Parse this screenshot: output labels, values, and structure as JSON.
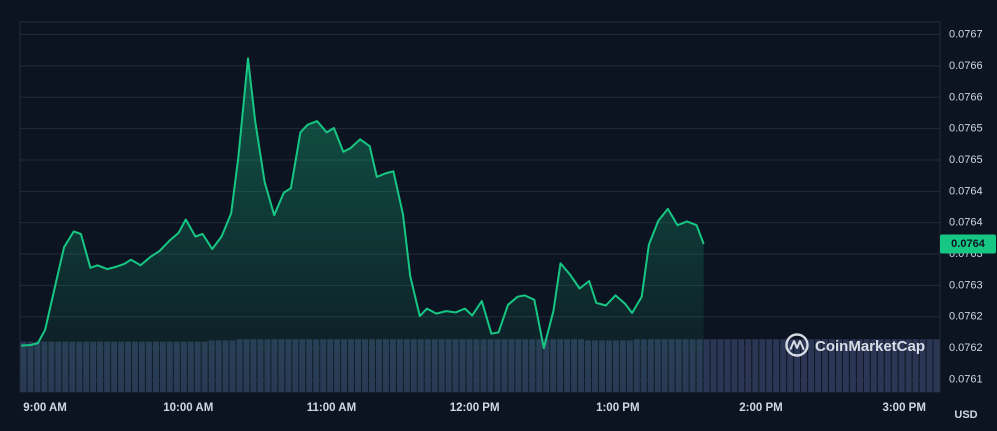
{
  "chart_data": {
    "type": "area",
    "title": "",
    "currency_label": "USD",
    "watermark": "CoinMarketCap",
    "current_price_label": "0.0764",
    "y_tick_labels": [
      "0.0767",
      "0.0766",
      "0.0766",
      "0.0765",
      "0.0765",
      "0.0764",
      "0.0764",
      "0.0763",
      "0.0763",
      "0.0762",
      "0.0762",
      "0.0761"
    ],
    "y_tick_values": [
      0.07669,
      0.07664,
      0.07659,
      0.07654,
      0.07649,
      0.07644,
      0.07639,
      0.07634,
      0.07629,
      0.07624,
      0.07619,
      0.07614
    ],
    "ylim": [
      0.07612,
      0.07671
    ],
    "x_tick_labels": [
      "9:00 AM",
      "10:00 AM",
      "11:00 AM",
      "12:00 PM",
      "1:00 PM",
      "2:00 PM",
      "3:00 PM"
    ],
    "x_tick_positions_hours": [
      9,
      10,
      11,
      12,
      13,
      14,
      15
    ],
    "xlim_hours": [
      8.825,
      15.25
    ],
    "grid": true,
    "colors": {
      "line": "#16c784",
      "background": "#0d1421",
      "grid": "#222b3a",
      "volume": "#2a3653",
      "badge": "#16c784"
    },
    "series": [
      {
        "values": [
          [
            8.833,
            0.076194
          ],
          [
            8.9,
            0.076195
          ],
          [
            8.95,
            0.076198
          ],
          [
            9.0,
            0.076219
          ],
          [
            9.067,
            0.076286
          ],
          [
            9.133,
            0.076351
          ],
          [
            9.2,
            0.076376
          ],
          [
            9.25,
            0.076372
          ],
          [
            9.317,
            0.076318
          ],
          [
            9.367,
            0.076322
          ],
          [
            9.433,
            0.076316
          ],
          [
            9.5,
            0.07632
          ],
          [
            9.55,
            0.076324
          ],
          [
            9.6,
            0.076331
          ],
          [
            9.667,
            0.076322
          ],
          [
            9.733,
            0.076335
          ],
          [
            9.8,
            0.076345
          ],
          [
            9.867,
            0.076361
          ],
          [
            9.933,
            0.076374
          ],
          [
            9.983,
            0.076395
          ],
          [
            10.05,
            0.076368
          ],
          [
            10.1,
            0.076372
          ],
          [
            10.167,
            0.076348
          ],
          [
            10.233,
            0.076368
          ],
          [
            10.3,
            0.076405
          ],
          [
            10.35,
            0.076495
          ],
          [
            10.417,
            0.076652
          ],
          [
            10.467,
            0.076553
          ],
          [
            10.533,
            0.076455
          ],
          [
            10.6,
            0.076402
          ],
          [
            10.667,
            0.076438
          ],
          [
            10.717,
            0.076445
          ],
          [
            10.783,
            0.076534
          ],
          [
            10.833,
            0.076546
          ],
          [
            10.9,
            0.076552
          ],
          [
            10.967,
            0.076534
          ],
          [
            11.017,
            0.076541
          ],
          [
            11.083,
            0.076503
          ],
          [
            11.133,
            0.076509
          ],
          [
            11.2,
            0.076523
          ],
          [
            11.267,
            0.076512
          ],
          [
            11.317,
            0.076463
          ],
          [
            11.383,
            0.076469
          ],
          [
            11.433,
            0.076472
          ],
          [
            11.5,
            0.076403
          ],
          [
            11.55,
            0.076305
          ],
          [
            11.617,
            0.076241
          ],
          [
            11.667,
            0.076253
          ],
          [
            11.733,
            0.076245
          ],
          [
            11.8,
            0.076249
          ],
          [
            11.867,
            0.076247
          ],
          [
            11.933,
            0.076253
          ],
          [
            11.983,
            0.076242
          ],
          [
            12.05,
            0.076265
          ],
          [
            12.117,
            0.076213
          ],
          [
            12.167,
            0.076215
          ],
          [
            12.233,
            0.076259
          ],
          [
            12.3,
            0.076272
          ],
          [
            12.35,
            0.076274
          ],
          [
            12.417,
            0.076267
          ],
          [
            12.483,
            0.07619
          ],
          [
            12.55,
            0.076249
          ],
          [
            12.6,
            0.076325
          ],
          [
            12.667,
            0.076307
          ],
          [
            12.733,
            0.076285
          ],
          [
            12.8,
            0.076297
          ],
          [
            12.85,
            0.076262
          ],
          [
            12.917,
            0.076258
          ],
          [
            12.983,
            0.076274
          ],
          [
            13.05,
            0.076261
          ],
          [
            13.1,
            0.076246
          ],
          [
            13.167,
            0.076272
          ],
          [
            13.217,
            0.076355
          ],
          [
            13.283,
            0.076393
          ],
          [
            13.35,
            0.076412
          ],
          [
            13.417,
            0.076386
          ],
          [
            13.483,
            0.076392
          ],
          [
            13.55,
            0.076386
          ],
          [
            13.6,
            0.076356
          ]
        ]
      }
    ],
    "volume_values_relative": [
      0.42,
      0.42,
      0.42,
      0.42,
      0.42,
      0.42,
      0.42,
      0.42,
      0.42,
      0.42,
      0.42,
      0.42,
      0.42,
      0.42,
      0.42,
      0.42,
      0.42,
      0.42,
      0.42,
      0.42,
      0.42,
      0.42,
      0.42,
      0.42,
      0.42,
      0.42,
      0.42,
      0.43,
      0.43,
      0.43,
      0.43,
      0.44,
      0.44,
      0.44,
      0.44,
      0.44,
      0.44,
      0.44,
      0.44,
      0.44,
      0.44,
      0.44,
      0.44,
      0.44,
      0.44,
      0.44,
      0.44,
      0.44,
      0.44,
      0.44,
      0.44,
      0.44,
      0.44,
      0.44,
      0.44,
      0.44,
      0.44,
      0.44,
      0.44,
      0.44,
      0.44,
      0.44,
      0.44,
      0.44,
      0.44,
      0.44,
      0.44,
      0.44,
      0.44,
      0.44,
      0.44,
      0.44,
      0.44,
      0.44,
      0.44,
      0.44,
      0.44,
      0.44,
      0.44,
      0.44,
      0.44,
      0.43,
      0.43,
      0.43,
      0.43,
      0.43,
      0.43,
      0.43,
      0.44,
      0.44,
      0.44,
      0.44,
      0.44,
      0.44,
      0.44,
      0.44,
      0.44,
      0.44,
      0.44,
      0.44,
      0.44,
      0.44,
      0.44,
      0.44,
      0.44,
      0.44,
      0.44,
      0.44,
      0.44,
      0.44,
      0.44,
      0.44,
      0.44,
      0.44,
      0.44,
      0.44,
      0.44,
      0.44,
      0.44,
      0.44,
      0.44,
      0.44,
      0.44,
      0.44,
      0.44,
      0.44,
      0.44,
      0.44,
      0.44,
      0.44,
      0.44,
      0.44
    ]
  }
}
